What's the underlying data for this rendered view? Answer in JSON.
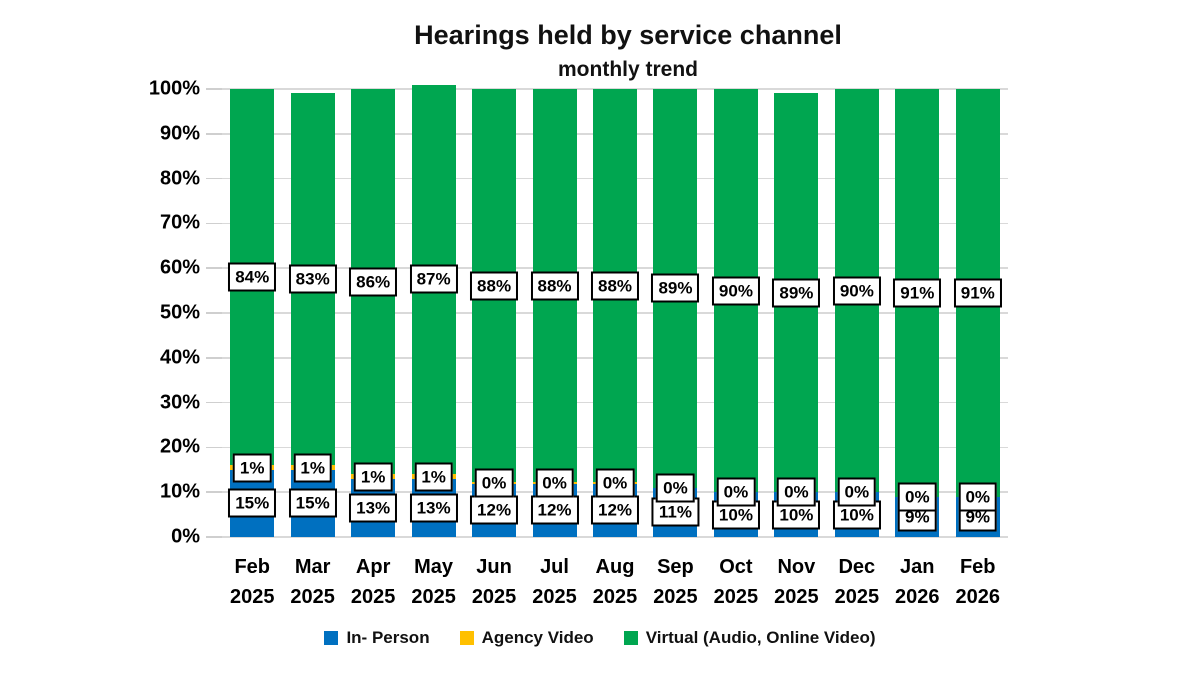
{
  "title": "Hearings held by service channel",
  "subtitle": "monthly trend",
  "chart_data": {
    "type": "bar",
    "stacked": true,
    "percent_stacked": true,
    "title": "Hearings held by service channel",
    "subtitle": "monthly trend",
    "categories": [
      {
        "month": "Feb",
        "year": "2025"
      },
      {
        "month": "Mar",
        "year": "2025"
      },
      {
        "month": "Apr",
        "year": "2025"
      },
      {
        "month": "May",
        "year": "2025"
      },
      {
        "month": "Jun",
        "year": "2025"
      },
      {
        "month": "Jul",
        "year": "2025"
      },
      {
        "month": "Aug",
        "year": "2025"
      },
      {
        "month": "Sep",
        "year": "2025"
      },
      {
        "month": "Oct",
        "year": "2025"
      },
      {
        "month": "Nov",
        "year": "2025"
      },
      {
        "month": "Dec",
        "year": "2025"
      },
      {
        "month": "Jan",
        "year": "2026"
      },
      {
        "month": "Feb",
        "year": "2026"
      }
    ],
    "series": [
      {
        "name": "In- Person",
        "color": "#0070C0",
        "values": [
          15,
          15,
          13,
          13,
          12,
          12,
          12,
          11,
          10,
          10,
          10,
          9,
          9
        ]
      },
      {
        "name": "Agency Video",
        "color": "#FFC000",
        "values": [
          1,
          1,
          1,
          1,
          0,
          0,
          0,
          0,
          0,
          0,
          0,
          0,
          0
        ]
      },
      {
        "name": "Virtual (Audio, Online Video)",
        "color": "#00A650",
        "values": [
          84,
          83,
          86,
          87,
          88,
          88,
          88,
          89,
          90,
          89,
          90,
          91,
          91
        ]
      }
    ],
    "xlabel": "",
    "ylabel": "",
    "ylim": [
      0,
      100
    ],
    "yticks": [
      "0%",
      "10%",
      "20%",
      "30%",
      "40%",
      "50%",
      "60%",
      "70%",
      "80%",
      "90%",
      "100%"
    ],
    "grid": "horizontal",
    "gridline_color": "#D9D9D9",
    "legend_position": "bottom",
    "data_labels": "every segment, white box with black border",
    "agency_video_hairline_indices": [
      4,
      5,
      6
    ],
    "background": "#FFFFFF"
  }
}
